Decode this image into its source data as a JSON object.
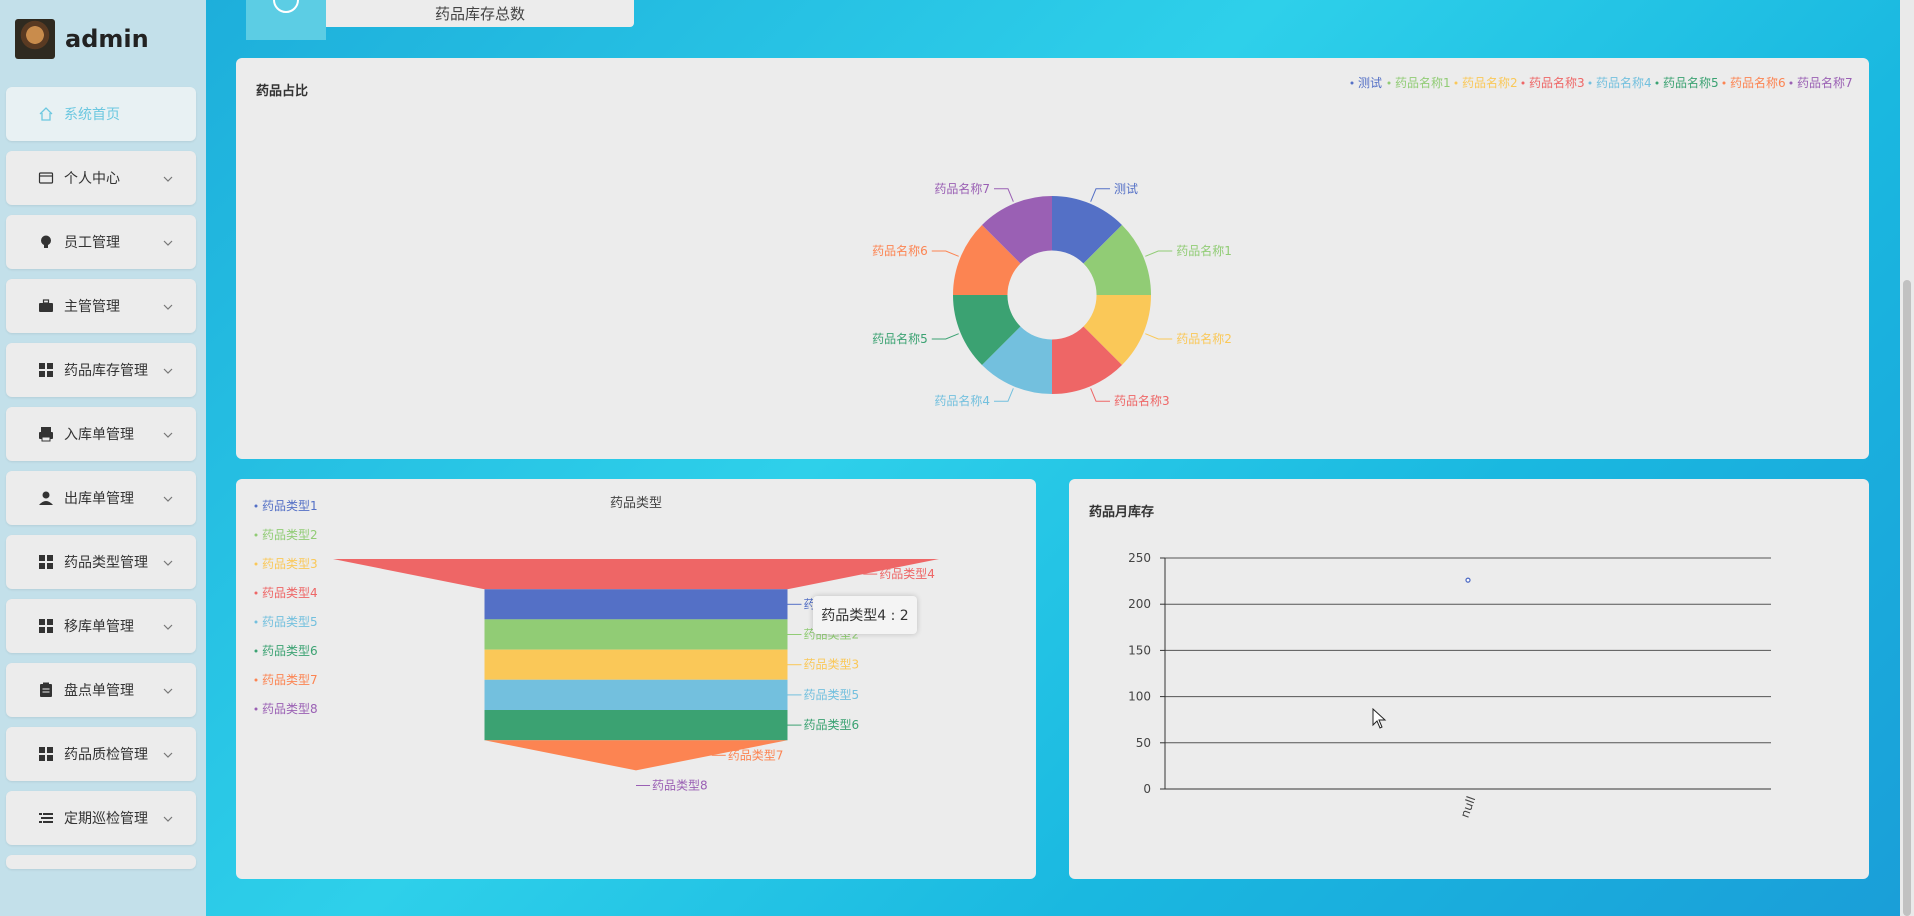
{
  "brand": {
    "name": "admin"
  },
  "sidebar": {
    "items": [
      {
        "label": "系统首页",
        "icon": "home-icon",
        "active": true,
        "expandable": false
      },
      {
        "label": "个人中心",
        "icon": "wallet-icon",
        "expandable": true
      },
      {
        "label": "员工管理",
        "icon": "bulb-icon",
        "expandable": true
      },
      {
        "label": "主管管理",
        "icon": "briefcase-icon",
        "expandable": true
      },
      {
        "label": "药品库存管理",
        "icon": "grid-icon",
        "expandable": true
      },
      {
        "label": "入库单管理",
        "icon": "printer-icon",
        "expandable": true
      },
      {
        "label": "出库单管理",
        "icon": "user-icon",
        "expandable": true
      },
      {
        "label": "药品类型管理",
        "icon": "grid-icon",
        "expandable": true
      },
      {
        "label": "移库单管理",
        "icon": "grid-icon",
        "expandable": true
      },
      {
        "label": "盘点单管理",
        "icon": "clipboard-icon",
        "expandable": true
      },
      {
        "label": "药品质检管理",
        "icon": "grid-icon",
        "expandable": true
      },
      {
        "label": "定期巡检管理",
        "icon": "list-icon",
        "expandable": true
      }
    ]
  },
  "top_card": {
    "label": "药品库存总数"
  },
  "pie_panel": {
    "title": "药品占比"
  },
  "funnel_panel": {
    "title": "药品类型",
    "tooltip": "药品类型4 : 2"
  },
  "line_panel": {
    "title": "药品月库存"
  },
  "chart_data": [
    {
      "type": "pie",
      "title": "药品占比",
      "inner_radius_ratio": 0.45,
      "categories": [
        "测试",
        "药品名称1",
        "药品名称2",
        "药品名称3",
        "药品名称4",
        "药品名称5",
        "药品名称6",
        "药品名称7"
      ],
      "values": [
        1,
        1,
        1,
        1,
        1,
        1,
        1,
        1
      ],
      "colors": [
        "#5470c6",
        "#91cc75",
        "#fac858",
        "#ee6666",
        "#73c0de",
        "#3ba272",
        "#fc8452",
        "#9a60b4"
      ],
      "legend_position": "top-right"
    },
    {
      "type": "funnel",
      "title": "药品类型",
      "categories": [
        "药品类型1",
        "药品类型2",
        "药品类型3",
        "药品类型4",
        "药品类型5",
        "药品类型6",
        "药品类型7",
        "药品类型8"
      ],
      "values": [
        1,
        1,
        1,
        2,
        1,
        1,
        1,
        0
      ],
      "colors": [
        "#5470c6",
        "#91cc75",
        "#fac858",
        "#ee6666",
        "#73c0de",
        "#3ba272",
        "#fc8452",
        "#9a60b4"
      ],
      "legend_position": "left"
    },
    {
      "type": "scatter",
      "title": "药品月库存",
      "categories": [
        "null"
      ],
      "values": [
        226
      ],
      "ylim": [
        0,
        250
      ],
      "yticks": [
        0,
        50,
        100,
        150,
        200,
        250
      ],
      "grid": true,
      "color": "#5470c6"
    }
  ]
}
